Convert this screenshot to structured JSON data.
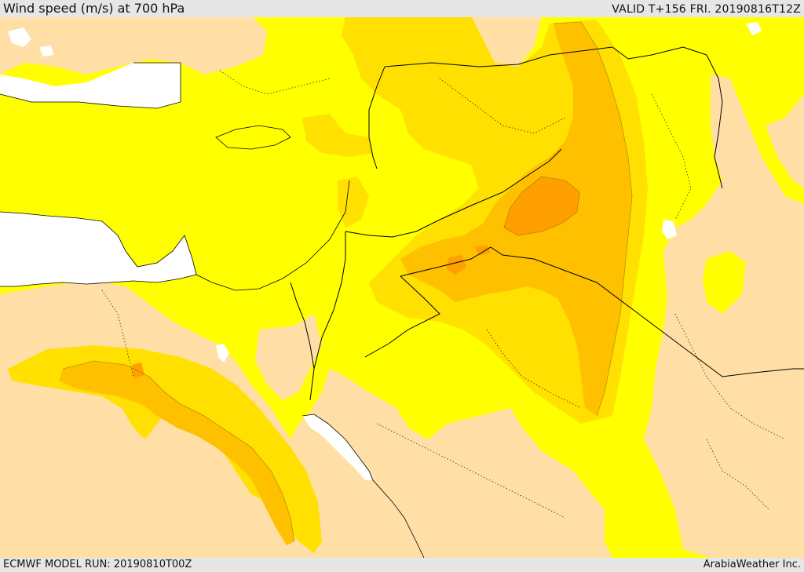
{
  "header": {
    "title": "Wind speed (m/s) at 700 hPa",
    "valid": "VALID T+156 FRI. 20190816T12Z"
  },
  "footer": {
    "model_run": "ECMWF MODEL RUN: 20190810T00Z",
    "credit": "ArabiaWeather Inc."
  },
  "colors": {
    "sea": "#ffffff",
    "calm": "#ffdfa5",
    "band_1": "#ffff00",
    "band_2": "#ffe000",
    "band_3": "#ffc000",
    "band_4": "#ff9f00",
    "border": "#000000"
  }
}
